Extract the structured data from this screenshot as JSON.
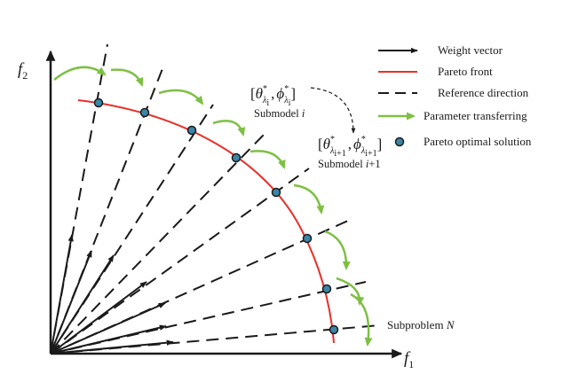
{
  "axes": {
    "y_label": "f",
    "y_sub": "2",
    "x_label": "f",
    "x_sub": "1"
  },
  "legend": {
    "weight_vector": "Weight vector",
    "pareto_front": "Pareto front",
    "reference_direction": "Reference direction",
    "parameter_transferring": "Parameter transferring",
    "pareto_optimal_solution": "Pareto optimal solution"
  },
  "submodels": {
    "a_open": "[",
    "a_theta": "θ",
    "a_star": "*",
    "a_lambda": "λ",
    "a_i": "i",
    "a_sep": ",",
    "a_phi": "ϕ",
    "a_close": "]",
    "a_caption": "Submodel",
    "a_caption_var": "i",
    "b_open": "[",
    "b_theta": "θ",
    "b_star": "*",
    "b_lambda": "λ",
    "b_i": "i+1",
    "b_sep": ",",
    "b_phi": "ϕ",
    "b_close": "]",
    "b_caption": "Submodel",
    "b_caption_var": "i",
    "b_caption_suffix": "+1"
  },
  "subproblem": {
    "prefix": "Subproblem",
    "var": "N"
  },
  "colors": {
    "black": "#1a1a1a",
    "pareto_front": "#e8302a",
    "transfer_arrow": "#7dc043",
    "solution_fill": "#3a86a8",
    "solution_stroke": "#1a1a1a"
  },
  "icons": {
    "weight_vector": "black-arrow-icon",
    "pareto_front": "red-line-icon",
    "reference_direction": "dashed-line-icon",
    "parameter_transferring": "green-arrow-icon",
    "pareto_optimal_solution": "blue-dot-icon"
  }
}
